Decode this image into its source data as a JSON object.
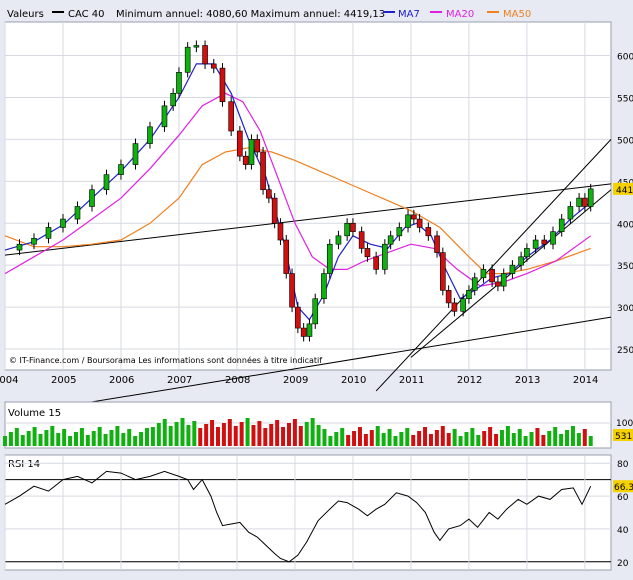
{
  "header": {
    "label": "Valeurs",
    "series_name": "CAC 40",
    "minmax": "Minimum annuel: 4080,60 Maximum annuel: 4419,13",
    "legend": [
      {
        "name": "MA7",
        "color": "#2020c8"
      },
      {
        "name": "MA20",
        "color": "#e020e0"
      },
      {
        "name": "MA50",
        "color": "#f08020"
      }
    ]
  },
  "copyright": "© IT-Finance.com / Boursorama Les informations sont données à titre indicatif",
  "colors": {
    "up": "#10b010",
    "down": "#d01010",
    "price_line": "#000000",
    "last_label_bg": "#f5d100",
    "volume_label_bg": "#f5d100",
    "rsi_label_bg": "#f5d100"
  },
  "chart_data": [
    {
      "type": "candlestick",
      "panel": "price",
      "title": "CAC 40",
      "x_ticks": [
        "2004",
        "2005",
        "2006",
        "2007",
        "2008",
        "2009",
        "2010",
        "2011",
        "2012",
        "2013",
        "2014"
      ],
      "y_ticks": [
        250,
        300,
        350,
        400,
        450,
        500,
        550,
        600
      ],
      "ylim": [
        225,
        640
      ],
      "xlim": [
        2004.0,
        2014.45
      ],
      "last_value_label": "441",
      "close_series": [
        [
          2004.0,
          368
        ],
        [
          2004.25,
          375
        ],
        [
          2004.5,
          382
        ],
        [
          2004.75,
          395
        ],
        [
          2005.0,
          405
        ],
        [
          2005.25,
          420
        ],
        [
          2005.5,
          440
        ],
        [
          2005.75,
          458
        ],
        [
          2006.0,
          470
        ],
        [
          2006.25,
          495
        ],
        [
          2006.5,
          515
        ],
        [
          2006.75,
          540
        ],
        [
          2006.9,
          555
        ],
        [
          2007.0,
          580
        ],
        [
          2007.15,
          610
        ],
        [
          2007.3,
          612
        ],
        [
          2007.45,
          590
        ],
        [
          2007.6,
          585
        ],
        [
          2007.75,
          545
        ],
        [
          2007.9,
          510
        ],
        [
          2008.05,
          480
        ],
        [
          2008.15,
          470
        ],
        [
          2008.25,
          500
        ],
        [
          2008.35,
          485
        ],
        [
          2008.45,
          440
        ],
        [
          2008.55,
          430
        ],
        [
          2008.65,
          400
        ],
        [
          2008.75,
          380
        ],
        [
          2008.85,
          340
        ],
        [
          2008.95,
          300
        ],
        [
          2009.05,
          275
        ],
        [
          2009.15,
          265
        ],
        [
          2009.25,
          280
        ],
        [
          2009.35,
          310
        ],
        [
          2009.5,
          340
        ],
        [
          2009.6,
          375
        ],
        [
          2009.75,
          385
        ],
        [
          2009.9,
          400
        ],
        [
          2010.0,
          390
        ],
        [
          2010.15,
          370
        ],
        [
          2010.25,
          360
        ],
        [
          2010.4,
          345
        ],
        [
          2010.55,
          375
        ],
        [
          2010.65,
          385
        ],
        [
          2010.8,
          395
        ],
        [
          2010.95,
          410
        ],
        [
          2011.05,
          405
        ],
        [
          2011.15,
          395
        ],
        [
          2011.3,
          385
        ],
        [
          2011.45,
          365
        ],
        [
          2011.55,
          320
        ],
        [
          2011.65,
          305
        ],
        [
          2011.75,
          295
        ],
        [
          2011.9,
          310
        ],
        [
          2012.0,
          320
        ],
        [
          2012.1,
          335
        ],
        [
          2012.25,
          345
        ],
        [
          2012.4,
          330
        ],
        [
          2012.5,
          325
        ],
        [
          2012.6,
          340
        ],
        [
          2012.75,
          350
        ],
        [
          2012.9,
          360
        ],
        [
          2013.0,
          370
        ],
        [
          2013.15,
          380
        ],
        [
          2013.3,
          375
        ],
        [
          2013.45,
          390
        ],
        [
          2013.6,
          405
        ],
        [
          2013.75,
          420
        ],
        [
          2013.9,
          430
        ],
        [
          2014.0,
          420
        ],
        [
          2014.1,
          441
        ]
      ],
      "ma7": [
        [
          2004.0,
          368
        ],
        [
          2004.5,
          378
        ],
        [
          2005.0,
          398
        ],
        [
          2005.5,
          430
        ],
        [
          2006.0,
          462
        ],
        [
          2006.5,
          500
        ],
        [
          2007.0,
          550
        ],
        [
          2007.3,
          590
        ],
        [
          2007.6,
          590
        ],
        [
          2007.9,
          555
        ],
        [
          2008.2,
          500
        ],
        [
          2008.5,
          455
        ],
        [
          2008.8,
          380
        ],
        [
          2009.05,
          300
        ],
        [
          2009.25,
          285
        ],
        [
          2009.5,
          315
        ],
        [
          2009.75,
          360
        ],
        [
          2010.0,
          385
        ],
        [
          2010.3,
          375
        ],
        [
          2010.6,
          370
        ],
        [
          2010.9,
          395
        ],
        [
          2011.1,
          400
        ],
        [
          2011.35,
          385
        ],
        [
          2011.6,
          345
        ],
        [
          2011.85,
          310
        ],
        [
          2012.1,
          320
        ],
        [
          2012.4,
          335
        ],
        [
          2012.7,
          340
        ],
        [
          2013.0,
          360
        ],
        [
          2013.4,
          380
        ],
        [
          2013.75,
          405
        ],
        [
          2014.1,
          425
        ]
      ],
      "ma20": [
        [
          2004.0,
          340
        ],
        [
          2004.5,
          360
        ],
        [
          2005.0,
          380
        ],
        [
          2005.5,
          405
        ],
        [
          2006.0,
          430
        ],
        [
          2006.5,
          465
        ],
        [
          2007.0,
          505
        ],
        [
          2007.4,
          540
        ],
        [
          2007.8,
          555
        ],
        [
          2008.1,
          545
        ],
        [
          2008.4,
          510
        ],
        [
          2008.7,
          455
        ],
        [
          2009.0,
          400
        ],
        [
          2009.3,
          360
        ],
        [
          2009.6,
          345
        ],
        [
          2009.9,
          345
        ],
        [
          2010.2,
          355
        ],
        [
          2010.6,
          365
        ],
        [
          2011.0,
          375
        ],
        [
          2011.4,
          370
        ],
        [
          2011.8,
          345
        ],
        [
          2012.2,
          325
        ],
        [
          2012.6,
          330
        ],
        [
          2013.0,
          340
        ],
        [
          2013.5,
          355
        ],
        [
          2014.1,
          385
        ]
      ],
      "ma50": [
        [
          2004.0,
          385
        ],
        [
          2004.5,
          372
        ],
        [
          2005.0,
          372
        ],
        [
          2005.5,
          375
        ],
        [
          2006.0,
          380
        ],
        [
          2006.5,
          400
        ],
        [
          2007.0,
          430
        ],
        [
          2007.4,
          470
        ],
        [
          2007.8,
          485
        ],
        [
          2008.2,
          490
        ],
        [
          2008.6,
          485
        ],
        [
          2009.0,
          475
        ],
        [
          2009.5,
          460
        ],
        [
          2010.0,
          445
        ],
        [
          2010.5,
          430
        ],
        [
          2011.0,
          415
        ],
        [
          2011.5,
          395
        ],
        [
          2012.0,
          360
        ],
        [
          2012.3,
          340
        ],
        [
          2012.6,
          340
        ],
        [
          2013.0,
          345
        ],
        [
          2013.5,
          355
        ],
        [
          2014.1,
          370
        ]
      ],
      "trendlines": [
        {
          "from": [
            2004.0,
            362
          ],
          "to": [
            2014.45,
            447
          ]
        },
        {
          "from": [
            2004.0,
            170
          ],
          "to": [
            2014.45,
            288
          ]
        },
        {
          "from": [
            2010.4,
            200
          ],
          "to": [
            2014.45,
            500
          ]
        },
        {
          "from": [
            2011.0,
            240
          ],
          "to": [
            2014.45,
            440
          ]
        }
      ]
    },
    {
      "type": "bar",
      "panel": "volume",
      "title": "Volume 15",
      "y_ticks_visible": [
        "1000"
      ],
      "last_value_label": "531",
      "note": "monthly volume bars, colored by candle direction"
    },
    {
      "type": "line",
      "panel": "rsi",
      "title": "RSI 14",
      "y_ticks": [
        20,
        40,
        60,
        80
      ],
      "ylim": [
        15,
        85
      ],
      "last_value_label": "66.3",
      "reference_lines": [
        20,
        70
      ],
      "points": [
        [
          2004.0,
          55
        ],
        [
          2004.25,
          60
        ],
        [
          2004.5,
          66
        ],
        [
          2004.75,
          63
        ],
        [
          2005.0,
          70
        ],
        [
          2005.25,
          72
        ],
        [
          2005.5,
          68
        ],
        [
          2005.75,
          75
        ],
        [
          2006.0,
          74
        ],
        [
          2006.25,
          70
        ],
        [
          2006.5,
          72
        ],
        [
          2006.75,
          75
        ],
        [
          2007.0,
          72
        ],
        [
          2007.15,
          70
        ],
        [
          2007.25,
          64
        ],
        [
          2007.4,
          70
        ],
        [
          2007.55,
          60
        ],
        [
          2007.65,
          50
        ],
        [
          2007.75,
          42
        ],
        [
          2007.9,
          43
        ],
        [
          2008.05,
          44
        ],
        [
          2008.2,
          38
        ],
        [
          2008.35,
          35
        ],
        [
          2008.5,
          30
        ],
        [
          2008.65,
          25
        ],
        [
          2008.75,
          22
        ],
        [
          2008.9,
          20
        ],
        [
          2009.05,
          24
        ],
        [
          2009.2,
          32
        ],
        [
          2009.4,
          45
        ],
        [
          2009.6,
          52
        ],
        [
          2009.75,
          57
        ],
        [
          2009.9,
          56
        ],
        [
          2010.1,
          52
        ],
        [
          2010.25,
          48
        ],
        [
          2010.4,
          52
        ],
        [
          2010.55,
          55
        ],
        [
          2010.75,
          62
        ],
        [
          2010.95,
          60
        ],
        [
          2011.1,
          56
        ],
        [
          2011.25,
          50
        ],
        [
          2011.4,
          38
        ],
        [
          2011.5,
          33
        ],
        [
          2011.65,
          40
        ],
        [
          2011.85,
          42
        ],
        [
          2012.0,
          46
        ],
        [
          2012.15,
          41
        ],
        [
          2012.35,
          50
        ],
        [
          2012.5,
          46
        ],
        [
          2012.65,
          52
        ],
        [
          2012.85,
          58
        ],
        [
          2013.0,
          55
        ],
        [
          2013.2,
          60
        ],
        [
          2013.4,
          58
        ],
        [
          2013.6,
          64
        ],
        [
          2013.8,
          65
        ],
        [
          2013.95,
          55
        ],
        [
          2014.1,
          66
        ]
      ]
    }
  ]
}
